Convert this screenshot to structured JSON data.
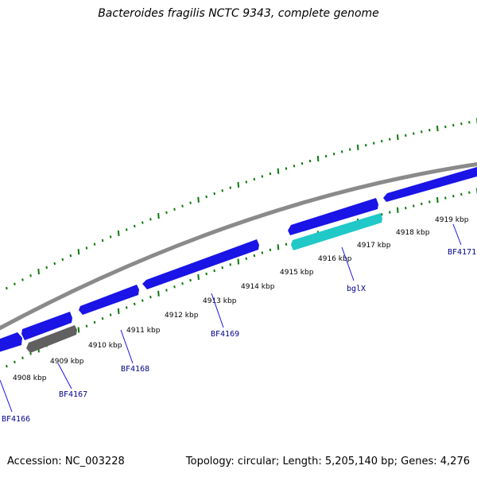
{
  "title": "Bacteroides fragilis NCTC 9343, complete genome",
  "footer": {
    "accession": "Accession: NC_003228",
    "summary": "Topology: circular; Length: 5,205,140 bp; Genes: 4,276"
  },
  "colors": {
    "backbone": "#8a8a8a",
    "gene_blue": "#1a14e6",
    "gene_grey": "#606060",
    "gene_cyan": "#20c8c8",
    "tick_green": "#0b7a0b",
    "label_blue": "#00008b"
  },
  "kbp_labels": [
    "4908 kbp",
    "4909 kbp",
    "4910 kbp",
    "4911 kbp",
    "4912 kbp",
    "4913 kbp",
    "4914 kbp",
    "4915 kbp",
    "4916 kbp",
    "4917 kbp",
    "4918 kbp",
    "4919 kbp"
  ],
  "gene_labels": [
    "BF4166",
    "BF4167",
    "BF4168",
    "BF4169",
    "bglX",
    "BF4171"
  ]
}
